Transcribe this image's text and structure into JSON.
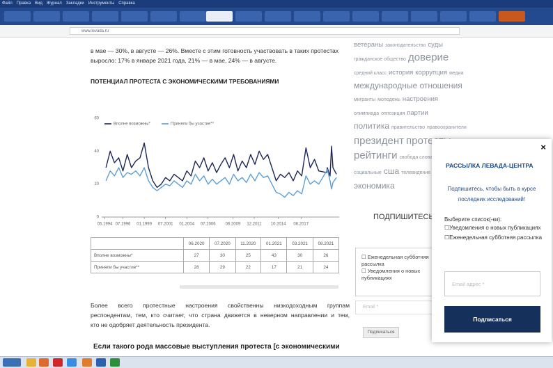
{
  "browser": {
    "menu": [
      "Файл",
      "Правка",
      "Вид",
      "Журнал",
      "Закладки",
      "Инструменты",
      "Справка"
    ],
    "url": "www.levada.ru"
  },
  "article": {
    "intro": [
      "в мае — 30%, в августе — 26%. Вместе с этим готовность участвовать в таких протестах",
      "выросло: 17% в январе 2021 года, 21% — в мае, 24% — в августе."
    ],
    "heading": "ПОТЕНЦИАЛ ПРОТЕСТА С ЭКОНОМИЧЕСКИМИ ТРЕБОВАНИЯМИ",
    "paragraph": [
      "Более всего протестные настроения свойственны низкодоходным группам",
      "респондентам, тем, кто считает, что страна движется в неверном направлении и тем,",
      "кто не одобряет деятельность президента."
    ],
    "question": "Если такого рода массовые выступления протеста [с экономическими"
  },
  "chart_data": {
    "type": "line",
    "x": [
      1994.5,
      1995,
      1995.5,
      1996,
      1996.5,
      1997,
      1997.5,
      1998,
      1998.5,
      1999,
      1999.5,
      2000,
      2000.5,
      2001,
      2001.5,
      2002,
      2002.5,
      2003,
      2003.5,
      2004,
      2004.5,
      2005,
      2005.5,
      2006,
      2006.5,
      2007,
      2007.5,
      2008,
      2008.5,
      2009,
      2009.5,
      2010,
      2010.5,
      2011,
      2011.5,
      2012,
      2012.5,
      2013,
      2013.5,
      2014,
      2014.5,
      2015,
      2015.5,
      2016,
      2016.5,
      2017,
      2017.5,
      2018,
      2018.5,
      2019,
      2019.5,
      2020.42,
      2020.5,
      2020.83,
      2021,
      2021.17,
      2021.58
    ],
    "series": [
      {
        "name": "Вполне возможны*",
        "color": "#1d2656",
        "values": [
          30,
          40,
          33,
          36,
          28,
          38,
          30,
          34,
          36,
          45,
          30,
          22,
          18,
          20,
          24,
          22,
          26,
          24,
          22,
          28,
          25,
          34,
          30,
          36,
          28,
          33,
          27,
          32,
          36,
          30,
          38,
          28,
          34,
          30,
          38,
          32,
          40,
          35,
          38,
          30,
          22,
          26,
          24,
          27,
          22,
          28,
          25,
          42,
          30,
          35,
          28,
          27,
          30,
          25,
          43,
          30,
          26
        ]
      },
      {
        "name": "Приняли бы участие**",
        "color": "#5b9fd6",
        "values": [
          22,
          28,
          25,
          30,
          24,
          27,
          26,
          28,
          25,
          30,
          22,
          18,
          16,
          18,
          20,
          19,
          22,
          20,
          18,
          22,
          20,
          26,
          22,
          25,
          20,
          23,
          20,
          22,
          24,
          20,
          26,
          22,
          24,
          21,
          26,
          22,
          27,
          24,
          25,
          20,
          15,
          14,
          12,
          15,
          13,
          16,
          14,
          25,
          20,
          22,
          20,
          28,
          29,
          22,
          17,
          21,
          24
        ]
      }
    ],
    "xlim": [
      1994,
      2021.9
    ],
    "xticks": [
      {
        "value": 1994.37,
        "label": "05.1994"
      },
      {
        "value": 1996.5,
        "label": "07.1996"
      },
      {
        "value": 1999.0,
        "label": "01.1999"
      },
      {
        "value": 2001.5,
        "label": "07.2001"
      },
      {
        "value": 2004.0,
        "label": "01.2004"
      },
      {
        "value": 2006.5,
        "label": "07.2006"
      },
      {
        "value": 2009.42,
        "label": "06.2009"
      },
      {
        "value": 2011.92,
        "label": "12.2011"
      },
      {
        "value": 2014.75,
        "label": "10.2014"
      },
      {
        "value": 2017.42,
        "label": "06.2017"
      }
    ],
    "ylim": [
      0,
      60
    ],
    "yticks": [
      0,
      20,
      40,
      60
    ]
  },
  "table": {
    "header": [
      "06.2020",
      "07.2020",
      "11.2020",
      "01.2021",
      "03.2021",
      "08.2021"
    ],
    "rows": [
      {
        "label": "Вполне возможны*",
        "values": [
          27,
          30,
          25,
          43,
          30,
          26
        ]
      },
      {
        "label": "Приняли бы участие**",
        "values": [
          28,
          29,
          22,
          17,
          21,
          24
        ]
      }
    ]
  },
  "sidebar": {
    "tags": [
      "ветераны",
      "законодательство",
      "суды",
      "гражданское общество",
      "доверие",
      "средний класс",
      "история",
      "коррупция",
      "медиа",
      "международные отношения",
      "мигранты",
      "молодежь",
      "настроения",
      "олимпиада",
      "оппозиция",
      "партии",
      "политика",
      "правительство",
      "правоохранители",
      "президент",
      "протесты",
      "рейтинги",
      "свобода слова",
      "социальные",
      "сша",
      "телевидение",
      "экономика"
    ],
    "subscribe_title": "ПОДПИШИТЕСЬ",
    "options": [
      "Еженедельная субботняя рассылка",
      "Уведомления о новых публикациях"
    ],
    "email": "Email *",
    "button": "Подписаться"
  },
  "popup": {
    "close": "×",
    "title": "РАССЫЛКА ЛЕВАДА-ЦЕНТРА",
    "text": "Подпишитесь, чтобы быть в курсе последних исследований!",
    "choose": "Выберите список(-ки):",
    "options": [
      "Уведомления о новых публикациях",
      "Еженедельная субботняя рассылка"
    ],
    "email": "Email адрес *",
    "button": "Подписаться"
  }
}
